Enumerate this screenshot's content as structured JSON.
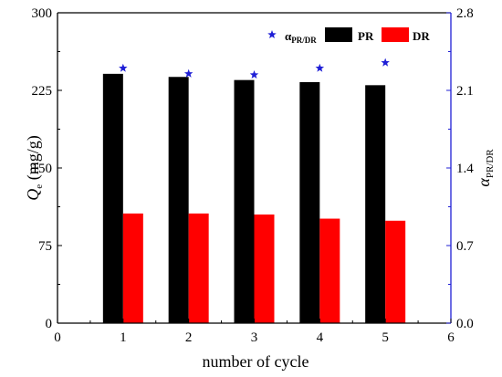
{
  "chart_data": {
    "type": "bar",
    "categories": [
      "1",
      "2",
      "3",
      "4",
      "5"
    ],
    "xlabel": "number of cycle",
    "xlim": [
      0,
      6
    ],
    "x_ticks": [
      "0",
      "1",
      "2",
      "3",
      "4",
      "5",
      "6"
    ],
    "ylabel_main": "Q",
    "ylabel_sub": "e",
    "ylabel_unit": " (mg/g)",
    "ylim": [
      0,
      300
    ],
    "y_ticks": [
      "0",
      "75",
      "150",
      "225",
      "300"
    ],
    "y2label_main": "α",
    "y2label_sub": "PR/DR",
    "y2lim": [
      0,
      2.8
    ],
    "y2_ticks": [
      "0.0",
      "0.7",
      "1.4",
      "2.1",
      "2.8"
    ],
    "series": [
      {
        "name": "PR",
        "axis": "left",
        "kind": "bar",
        "color": "#000000",
        "values": [
          241,
          238,
          235,
          233,
          230
        ]
      },
      {
        "name": "DR",
        "axis": "left",
        "kind": "bar",
        "color": "#ff0000",
        "values": [
          106,
          106,
          105,
          101,
          99
        ]
      },
      {
        "name": "α",
        "name_sub": "PR/DR",
        "axis": "right",
        "kind": "scatter",
        "marker": "star",
        "color": "#1f1fd6",
        "values": [
          2.3,
          2.25,
          2.24,
          2.3,
          2.35
        ]
      }
    ],
    "legend_position": "top-right",
    "right_axis_color": "#1f1fd6"
  }
}
